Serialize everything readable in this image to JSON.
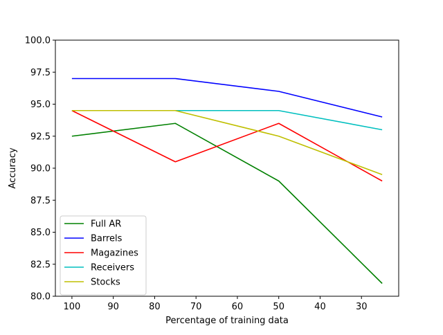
{
  "chart_data": {
    "type": "line",
    "title": "",
    "xlabel": "Percentage of training data",
    "ylabel": "Accuracy",
    "x_inverted": true,
    "xlim": [
      104,
      21
    ],
    "ylim": [
      80.0,
      100.0
    ],
    "x_ticks": [
      100,
      90,
      80,
      70,
      60,
      50,
      40,
      30
    ],
    "y_ticks": [
      80.0,
      82.5,
      85.0,
      87.5,
      90.0,
      92.5,
      95.0,
      97.5,
      100.0
    ],
    "x_tick_labels": [
      "100",
      "90",
      "80",
      "70",
      "60",
      "50",
      "40",
      "30"
    ],
    "y_tick_labels": [
      "80.0",
      "82.5",
      "85.0",
      "87.5",
      "90.0",
      "92.5",
      "95.0",
      "97.5",
      "100.0"
    ],
    "grid": false,
    "legend_position": "lower-left",
    "x": [
      100,
      75,
      50,
      25
    ],
    "series": [
      {
        "name": "Full AR",
        "color": "#008000",
        "values": [
          92.5,
          93.5,
          89.0,
          81.0
        ]
      },
      {
        "name": "Barrels",
        "color": "#0000ff",
        "values": [
          97.0,
          97.0,
          96.0,
          94.0
        ]
      },
      {
        "name": "Magazines",
        "color": "#ff0000",
        "values": [
          94.5,
          90.5,
          93.5,
          89.0
        ]
      },
      {
        "name": "Receivers",
        "color": "#00bfbf",
        "values": [
          94.5,
          94.5,
          94.5,
          93.0
        ]
      },
      {
        "name": "Stocks",
        "color": "#bfbf00",
        "values": [
          94.5,
          94.5,
          92.5,
          89.5
        ]
      }
    ]
  }
}
